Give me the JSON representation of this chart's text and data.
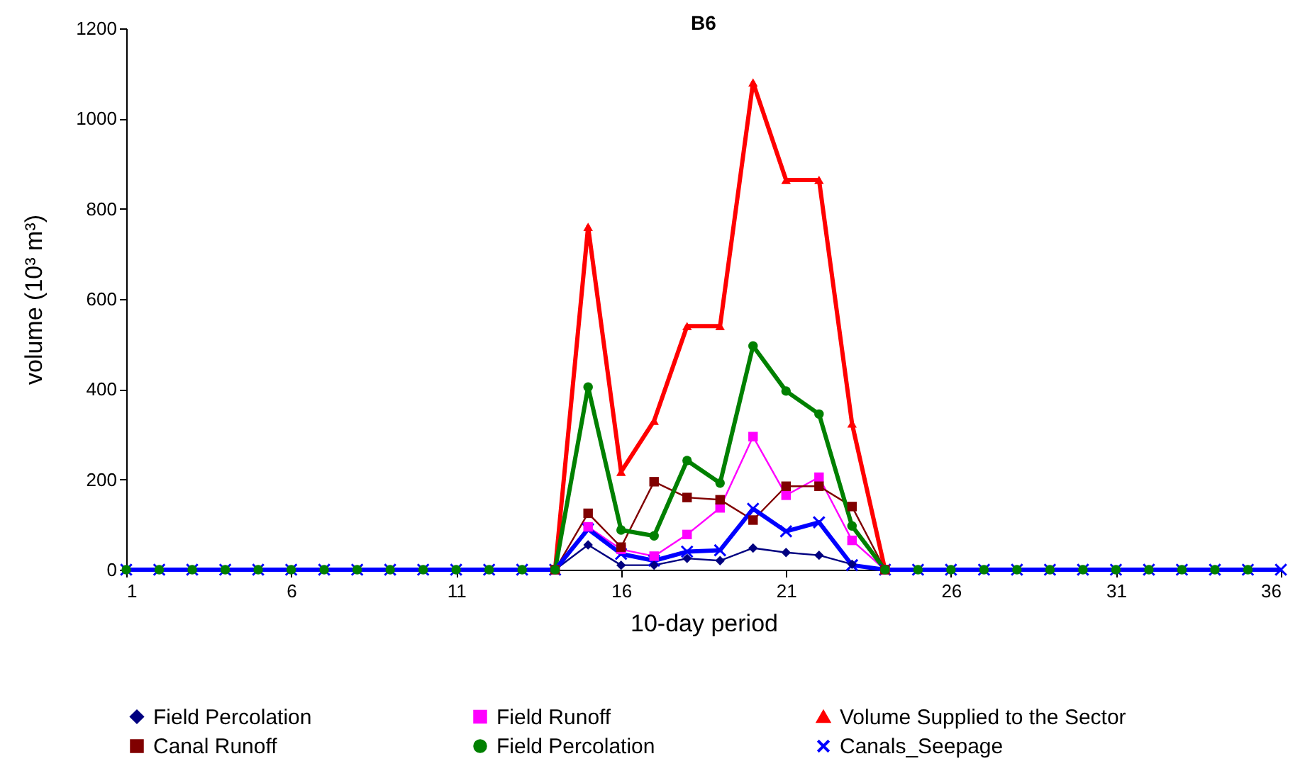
{
  "chart_data": {
    "type": "line",
    "title": "B6",
    "xlabel": "10-day period",
    "ylabel": "volume (10³ m³)",
    "x": [
      1,
      2,
      3,
      4,
      5,
      6,
      7,
      8,
      9,
      10,
      11,
      12,
      13,
      14,
      15,
      16,
      17,
      18,
      19,
      20,
      21,
      22,
      23,
      24,
      25,
      26,
      27,
      28,
      29,
      30,
      31,
      32,
      33,
      34,
      35,
      36
    ],
    "xlim": [
      1,
      36
    ],
    "xticks": [
      1,
      6,
      11,
      16,
      21,
      26,
      31,
      36
    ],
    "ylim": [
      0,
      1200
    ],
    "yticks": [
      0,
      200,
      400,
      600,
      800,
      1000,
      1200
    ],
    "grid": false,
    "legend": "bottom",
    "line_style": "solid",
    "series": [
      {
        "name": "Field Percolation",
        "color": "#000080",
        "marker": "diamond",
        "values": [
          null,
          null,
          null,
          null,
          null,
          null,
          null,
          null,
          null,
          null,
          null,
          null,
          null,
          0,
          55,
          10,
          10,
          25,
          20,
          48,
          38,
          32,
          12,
          0,
          null,
          null,
          null,
          null,
          null,
          null,
          null,
          null,
          null,
          null,
          null,
          null
        ]
      },
      {
        "name": "Field Runoff",
        "color": "#ff00ff",
        "marker": "square",
        "values": [
          null,
          null,
          null,
          null,
          null,
          null,
          null,
          null,
          null,
          null,
          null,
          null,
          null,
          0,
          95,
          45,
          30,
          78,
          137,
          295,
          165,
          205,
          65,
          0,
          null,
          null,
          null,
          null,
          null,
          null,
          null,
          null,
          null,
          null,
          null,
          null
        ]
      },
      {
        "name": "Volume Supplied to the Sector",
        "color": "#ff0000",
        "marker": "triangle",
        "values": [
          null,
          null,
          null,
          null,
          null,
          null,
          null,
          null,
          null,
          null,
          null,
          null,
          null,
          0,
          760,
          217,
          330,
          540,
          540,
          1080,
          864,
          864,
          324,
          0,
          null,
          null,
          null,
          null,
          null,
          null,
          null,
          null,
          null,
          null,
          null,
          null
        ]
      },
      {
        "name": "Canal Runoff",
        "color": "#800000",
        "marker": "square",
        "values": [
          null,
          null,
          null,
          null,
          null,
          null,
          null,
          null,
          null,
          null,
          null,
          null,
          null,
          0,
          125,
          50,
          195,
          160,
          155,
          110,
          185,
          185,
          140,
          0,
          null,
          null,
          null,
          null,
          null,
          null,
          null,
          null,
          null,
          null,
          null,
          null
        ]
      },
      {
        "name": "Field Percolation",
        "color": "#008000",
        "marker": "circle",
        "values": [
          0,
          0,
          0,
          0,
          0,
          0,
          0,
          0,
          0,
          0,
          0,
          0,
          0,
          0,
          405,
          88,
          75,
          242,
          192,
          496,
          396,
          345,
          97,
          0,
          0,
          0,
          0,
          0,
          0,
          0,
          0,
          0,
          0,
          0,
          0,
          null
        ]
      },
      {
        "name": "Canals_Seepage",
        "color": "#0000ff",
        "marker": "cross",
        "values": [
          0,
          0,
          0,
          0,
          0,
          0,
          0,
          0,
          0,
          0,
          0,
          0,
          0,
          0,
          90,
          35,
          20,
          40,
          43,
          135,
          85,
          105,
          10,
          0,
          0,
          0,
          0,
          0,
          0,
          0,
          0,
          0,
          0,
          0,
          0,
          0
        ]
      }
    ]
  }
}
